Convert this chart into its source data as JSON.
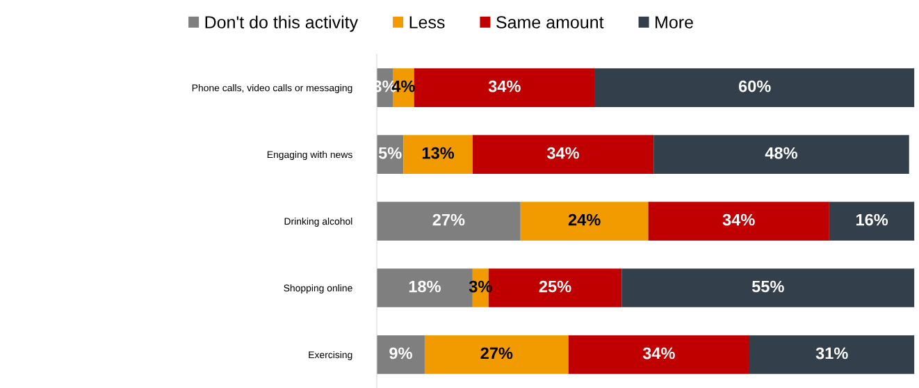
{
  "chart_data": {
    "type": "bar",
    "orientation": "horizontal",
    "stacked": true,
    "legend": "top",
    "tick_labels": "y",
    "grid": false,
    "categories": [
      "Phone calls, video calls or messaging",
      "Engaging with news",
      "Drinking alcohol",
      "Shopping online",
      "Exercising"
    ],
    "series": [
      {
        "name": "Don't do this activity",
        "color": "#7f7f7f",
        "values": [
          3,
          5,
          27,
          18,
          9
        ],
        "value_labels": [
          "3%",
          "5%",
          "27%",
          "18%",
          "9%"
        ]
      },
      {
        "name": "Less",
        "color": "#f29b00",
        "values": [
          4,
          13,
          24,
          3,
          27
        ],
        "value_labels": [
          "4%",
          "13%",
          "24%",
          "3%",
          "27%"
        ]
      },
      {
        "name": "Same amount",
        "color": "#c00000",
        "values": [
          34,
          34,
          34,
          25,
          34
        ],
        "value_labels": [
          "34%",
          "34%",
          "34%",
          "25%",
          "34%"
        ]
      },
      {
        "name": "More",
        "color": "#333f4b",
        "values": [
          60,
          48,
          16,
          55,
          31
        ],
        "value_labels": [
          "60%",
          "48%",
          "16%",
          "55%",
          "31%"
        ]
      }
    ]
  }
}
